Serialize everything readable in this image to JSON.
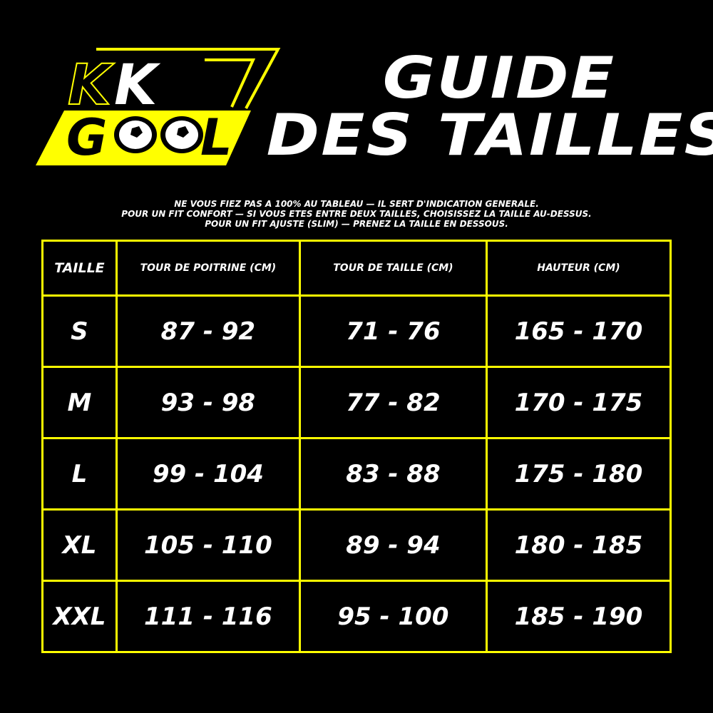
{
  "logo": {
    "text_top": "KK",
    "text_bottom": "GOOL",
    "colors": {
      "yellow": "#ffff00",
      "black": "#000000",
      "white": "#ffffff"
    }
  },
  "title": {
    "line1": "GUIDE",
    "line2": "DES TAILLES"
  },
  "notes": [
    "NE VOUS FIEZ PAS A 100% AU TABLEAU — IL SERT D'INDICATION GENERALE.",
    "POUR UN FIT CONFORT — SI VOUS ETES ENTRE DEUX TAILLES, CHOISISSEZ LA TAILLE AU-DESSUS.",
    "POUR UN FIT AJUSTE (SLIM) — PRENEZ LA TAILLE EN DESSOUS."
  ],
  "table": {
    "headers": [
      "TAILLE",
      "TOUR DE POITRINE (CM)",
      "TOUR DE TAILLE (CM)",
      "HAUTEUR (CM)"
    ],
    "rows": [
      [
        "S",
        "87 - 92",
        "71 - 76",
        "165 - 170"
      ],
      [
        "M",
        "93 - 98",
        "77 - 82",
        "170 - 175"
      ],
      [
        "L",
        "99 - 104",
        "83 - 88",
        "175 - 180"
      ],
      [
        "XL",
        "105 - 110",
        "89 - 94",
        "180 - 185"
      ],
      [
        "XXL",
        "111 - 116",
        "95 - 100",
        "185 - 190"
      ]
    ]
  }
}
